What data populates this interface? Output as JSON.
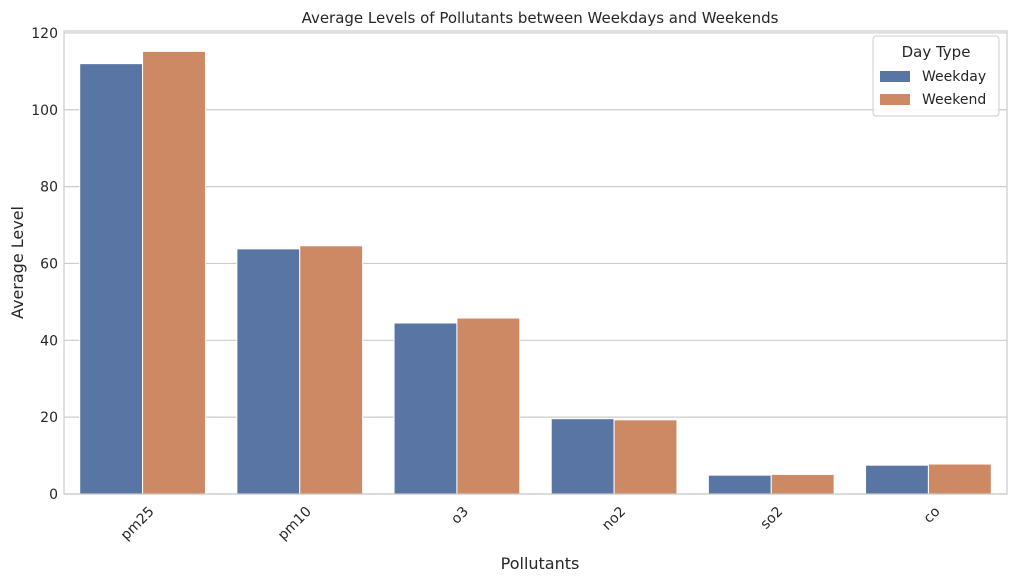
{
  "chart_data": {
    "type": "bar",
    "title": "Average Levels of Pollutants between Weekdays and Weekends",
    "xlabel": "Pollutants",
    "ylabel": "Average Level",
    "categories": [
      "pm25",
      "pm10",
      "o3",
      "no2",
      "so2",
      "co"
    ],
    "series": [
      {
        "name": "Weekday",
        "color": "#5875a4",
        "values": [
          112.0,
          63.8,
          44.5,
          19.6,
          4.9,
          7.5
        ]
      },
      {
        "name": "Weekend",
        "color": "#cc8963",
        "values": [
          115.2,
          64.6,
          45.8,
          19.3,
          5.1,
          7.8
        ]
      }
    ],
    "ylim": [
      0,
      120.5
    ],
    "yticks": [
      0,
      20,
      40,
      60,
      80,
      100,
      120
    ],
    "grid": "horizontal",
    "legend": {
      "title": "Day Type",
      "placement": "top-right"
    }
  }
}
